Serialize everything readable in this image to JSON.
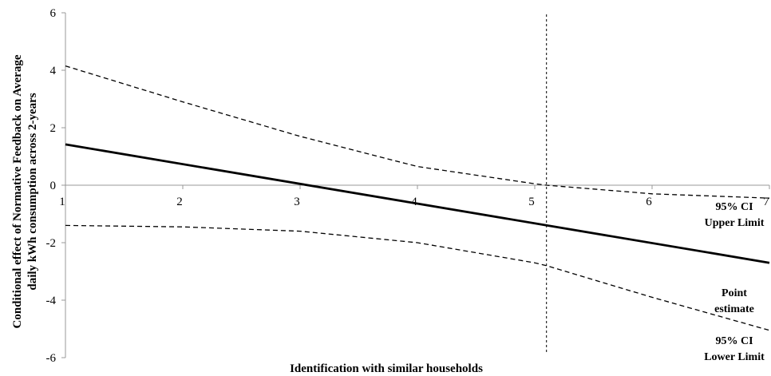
{
  "chart_data": {
    "type": "line",
    "title": "",
    "xlabel": "Identification with similar households",
    "ylabel_lines": [
      "Conditional effect of Normative Feedback on Average",
      "daily kWh consumption across 2-years"
    ],
    "xlim": [
      1,
      7
    ],
    "ylim": [
      -6,
      6
    ],
    "x_ticks": [
      "1",
      "2",
      "3",
      "4",
      "5",
      "6",
      "7"
    ],
    "y_ticks": [
      "6",
      "4",
      "2",
      "0",
      "-2",
      "-4",
      "-6"
    ],
    "grid": false,
    "vertical_reference_x": 5.1,
    "series": [
      {
        "key": "upper",
        "label_lines": [
          "95% CI",
          "Upper Limit"
        ],
        "style": "dashed",
        "x": [
          1,
          2,
          3,
          4,
          5,
          5.1,
          6,
          7
        ],
        "y": [
          4.15,
          2.9,
          1.7,
          0.65,
          0.05,
          0.0,
          -0.3,
          -0.45
        ]
      },
      {
        "key": "point",
        "label_lines": [
          "Point",
          "estimate"
        ],
        "style": "solid",
        "x": [
          1,
          7
        ],
        "y": [
          1.42,
          -2.7
        ]
      },
      {
        "key": "lower",
        "label_lines": [
          "95% CI",
          "Lower Limit"
        ],
        "style": "dashed",
        "x": [
          1,
          2,
          3,
          4,
          5,
          5.1,
          6,
          7
        ],
        "y": [
          -1.4,
          -1.45,
          -1.6,
          -2.0,
          -2.7,
          -2.8,
          -3.9,
          -5.05
        ]
      }
    ]
  }
}
